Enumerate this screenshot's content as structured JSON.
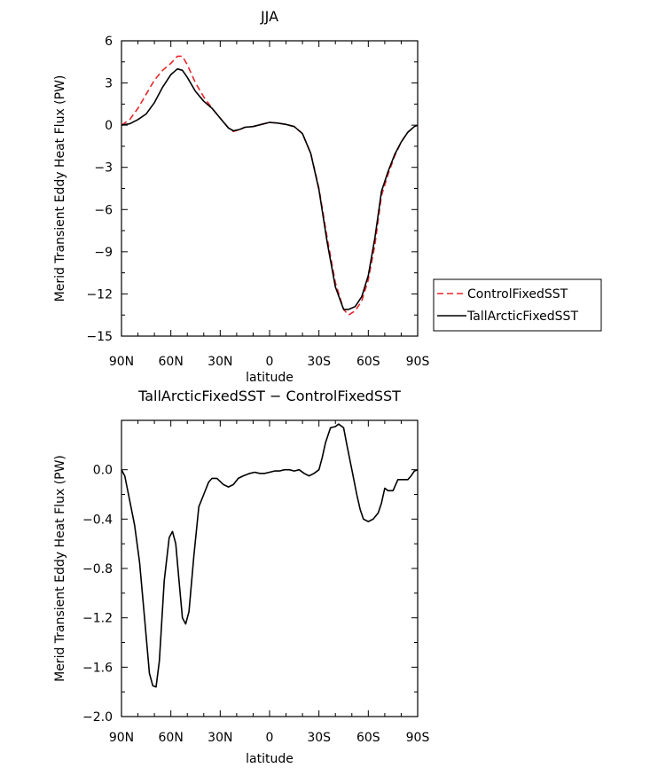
{
  "chart_data": [
    {
      "type": "line",
      "title": "JJA",
      "xlabel": "latitude",
      "ylabel": "Merid Transient Eddy Heat Flux (PW)",
      "xlim": [
        90,
        -90
      ],
      "ylim": [
        -15,
        6
      ],
      "xticks": [
        90,
        60,
        30,
        0,
        -30,
        -60,
        -90
      ],
      "xtick_labels": [
        "90N",
        "60N",
        "30N",
        "0",
        "30S",
        "60S",
        "90S"
      ],
      "yticks": [
        6,
        3,
        0,
        -3,
        -6,
        -9,
        -12,
        -15
      ],
      "ytick_labels": [
        "6",
        "3",
        "0",
        "−3",
        "−6",
        "−9",
        "−12",
        "−15"
      ],
      "legend_position": "right",
      "series": [
        {
          "name": "ControlFixedSST",
          "color": "#e8262b",
          "dash": "dashed",
          "points": [
            [
              90,
              0.0
            ],
            [
              85,
              0.4
            ],
            [
              80,
              1.2
            ],
            [
              75,
              2.2
            ],
            [
              70,
              3.2
            ],
            [
              65,
              3.9
            ],
            [
              60,
              4.4
            ],
            [
              56,
              4.9
            ],
            [
              53,
              4.9
            ],
            [
              50,
              4.3
            ],
            [
              45,
              3.0
            ],
            [
              40,
              2.0
            ],
            [
              35,
              1.2
            ],
            [
              30,
              0.5
            ],
            [
              25,
              -0.2
            ],
            [
              22,
              -0.45
            ],
            [
              18,
              -0.3
            ],
            [
              15,
              -0.15
            ],
            [
              10,
              -0.1
            ],
            [
              5,
              0.05
            ],
            [
              0,
              0.2
            ],
            [
              -5,
              0.15
            ],
            [
              -10,
              0.05
            ],
            [
              -15,
              -0.1
            ],
            [
              -20,
              -0.6
            ],
            [
              -25,
              -2.0
            ],
            [
              -30,
              -4.5
            ],
            [
              -35,
              -8.0
            ],
            [
              -40,
              -11.2
            ],
            [
              -45,
              -13.1
            ],
            [
              -48,
              -13.5
            ],
            [
              -52,
              -13.2
            ],
            [
              -56,
              -12.5
            ],
            [
              -60,
              -11.0
            ],
            [
              -64,
              -8.5
            ],
            [
              -68,
              -5.0
            ],
            [
              -72,
              -3.5
            ],
            [
              -76,
              -2.2
            ],
            [
              -80,
              -1.2
            ],
            [
              -84,
              -0.5
            ],
            [
              -88,
              -0.1
            ],
            [
              -90,
              0.0
            ]
          ]
        },
        {
          "name": "TallArcticFixedSST",
          "color": "#000000",
          "dash": "solid",
          "points": [
            [
              90,
              0.0
            ],
            [
              85,
              0.1
            ],
            [
              80,
              0.4
            ],
            [
              75,
              0.8
            ],
            [
              70,
              1.6
            ],
            [
              65,
              2.7
            ],
            [
              60,
              3.6
            ],
            [
              56,
              4.0
            ],
            [
              53,
              3.9
            ],
            [
              50,
              3.4
            ],
            [
              45,
              2.4
            ],
            [
              40,
              1.7
            ],
            [
              35,
              1.2
            ],
            [
              30,
              0.5
            ],
            [
              25,
              -0.2
            ],
            [
              22,
              -0.4
            ],
            [
              18,
              -0.3
            ],
            [
              15,
              -0.15
            ],
            [
              10,
              -0.1
            ],
            [
              5,
              0.05
            ],
            [
              0,
              0.2
            ],
            [
              -5,
              0.15
            ],
            [
              -10,
              0.05
            ],
            [
              -15,
              -0.1
            ],
            [
              -20,
              -0.6
            ],
            [
              -25,
              -2.0
            ],
            [
              -30,
              -4.6
            ],
            [
              -35,
              -8.3
            ],
            [
              -40,
              -11.5
            ],
            [
              -45,
              -13.1
            ],
            [
              -48,
              -13.1
            ],
            [
              -52,
              -12.9
            ],
            [
              -56,
              -12.2
            ],
            [
              -60,
              -10.7
            ],
            [
              -64,
              -8.0
            ],
            [
              -68,
              -4.7
            ],
            [
              -72,
              -3.3
            ],
            [
              -76,
              -2.1
            ],
            [
              -80,
              -1.2
            ],
            [
              -84,
              -0.5
            ],
            [
              -88,
              -0.1
            ],
            [
              -90,
              0.0
            ]
          ]
        }
      ]
    },
    {
      "type": "line",
      "title": "TallArcticFixedSST − ControlFixedSST",
      "xlabel": "latitude",
      "ylabel": "Merid Transient Eddy Heat Flux (PW)",
      "xlim": [
        90,
        -90
      ],
      "ylim": [
        -2.0,
        0.4
      ],
      "xticks": [
        90,
        60,
        30,
        0,
        -30,
        -60,
        -90
      ],
      "xtick_labels": [
        "90N",
        "60N",
        "30N",
        "0",
        "30S",
        "60S",
        "90S"
      ],
      "yticks": [
        0.0,
        -0.4,
        -0.8,
        -1.2,
        -1.6,
        -2.0
      ],
      "ytick_labels": [
        "0.0",
        "−0.4",
        "−0.8",
        "−1.2",
        "−1.6",
        "−2.0"
      ],
      "series": [
        {
          "name": "",
          "color": "#000000",
          "dash": "solid",
          "points": [
            [
              90,
              0.0
            ],
            [
              88,
              -0.05
            ],
            [
              85,
              -0.25
            ],
            [
              82,
              -0.45
            ],
            [
              79,
              -0.75
            ],
            [
              76,
              -1.2
            ],
            [
              73,
              -1.65
            ],
            [
              71,
              -1.75
            ],
            [
              69,
              -1.76
            ],
            [
              67,
              -1.55
            ],
            [
              64,
              -0.9
            ],
            [
              61,
              -0.55
            ],
            [
              59,
              -0.5
            ],
            [
              57,
              -0.6
            ],
            [
              55,
              -0.9
            ],
            [
              53,
              -1.2
            ],
            [
              51,
              -1.25
            ],
            [
              49,
              -1.15
            ],
            [
              46,
              -0.7
            ],
            [
              43,
              -0.3
            ],
            [
              40,
              -0.2
            ],
            [
              37,
              -0.1
            ],
            [
              35,
              -0.07
            ],
            [
              32,
              -0.07
            ],
            [
              28,
              -0.12
            ],
            [
              25,
              -0.14
            ],
            [
              22,
              -0.12
            ],
            [
              19,
              -0.07
            ],
            [
              16,
              -0.05
            ],
            [
              12,
              -0.03
            ],
            [
              9,
              -0.02
            ],
            [
              6,
              -0.03
            ],
            [
              3,
              -0.03
            ],
            [
              0,
              -0.02
            ],
            [
              -3,
              -0.01
            ],
            [
              -6,
              -0.01
            ],
            [
              -9,
              0.0
            ],
            [
              -12,
              0.0
            ],
            [
              -15,
              -0.01
            ],
            [
              -18,
              0.0
            ],
            [
              -21,
              -0.03
            ],
            [
              -24,
              -0.05
            ],
            [
              -27,
              -0.03
            ],
            [
              -30,
              0.0
            ],
            [
              -32,
              0.1
            ],
            [
              -34,
              0.22
            ],
            [
              -37,
              0.34
            ],
            [
              -40,
              0.35
            ],
            [
              -42,
              0.37
            ],
            [
              -45,
              0.34
            ],
            [
              -47,
              0.2
            ],
            [
              -50,
              0.0
            ],
            [
              -53,
              -0.2
            ],
            [
              -55,
              -0.32
            ],
            [
              -57,
              -0.4
            ],
            [
              -60,
              -0.42
            ],
            [
              -63,
              -0.4
            ],
            [
              -66,
              -0.35
            ],
            [
              -68,
              -0.27
            ],
            [
              -70,
              -0.15
            ],
            [
              -72,
              -0.17
            ],
            [
              -75,
              -0.17
            ],
            [
              -78,
              -0.08
            ],
            [
              -81,
              -0.08
            ],
            [
              -84,
              -0.08
            ],
            [
              -86,
              -0.05
            ],
            [
              -88,
              -0.01
            ],
            [
              -90,
              0.0
            ]
          ]
        }
      ]
    }
  ]
}
